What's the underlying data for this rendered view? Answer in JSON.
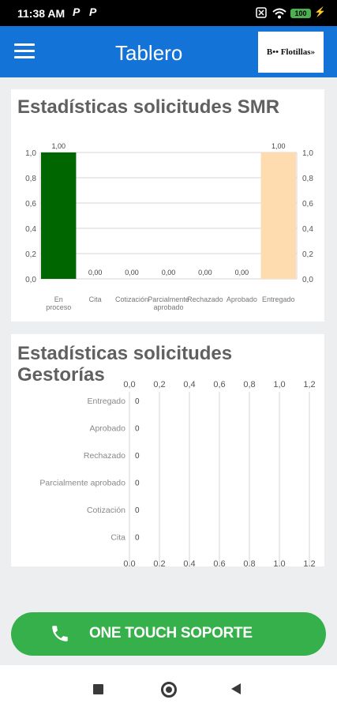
{
  "status_bar": {
    "time": "11:38 AM",
    "notif_1": "P",
    "notif_2": "P",
    "battery": "100",
    "icons": [
      "close-box-icon",
      "wifi-icon",
      "battery-icon",
      "charging-bolt-icon"
    ]
  },
  "app_bar": {
    "title": "Tablero",
    "logo_text": "B•• Flotillas»",
    "icons": [
      "menu-icon"
    ]
  },
  "colors": {
    "app_bar": "#1473d6",
    "cta": "#35b04a",
    "bar_en_proceso": "#006600",
    "bar_entregado": "#ffdcb0"
  },
  "smr_card": {
    "title": "Estadísticas solicitudes SMR",
    "y_ticks": [
      "0,0",
      "0,2",
      "0,4",
      "0,6",
      "0,8",
      "1,0"
    ]
  },
  "gestorias_card": {
    "title_line1": "Estadísticas solicitudes",
    "title_line2": "Gestorías",
    "x_ticks": [
      "0,0",
      "0,2",
      "0,4",
      "0,6",
      "0,8",
      "1,0",
      "1,2"
    ]
  },
  "chart_data": [
    {
      "type": "bar",
      "title": "Estadísticas solicitudes SMR",
      "categories": [
        "En proceso",
        "Cita",
        "Cotización",
        "Parcialmente aprobado",
        "Rechazado",
        "Aprobado",
        "Entregado"
      ],
      "category_display": [
        "En\nproceso",
        "Cita",
        "Cotización",
        "Parcialmente\naprobado",
        "Rechazado",
        "Aprobado",
        "Entregado"
      ],
      "values": [
        1,
        0,
        0,
        0,
        0,
        0,
        1
      ],
      "value_labels": [
        "1,00",
        "0,00",
        "0,00",
        "0,00",
        "0,00",
        "0,00",
        "1,00"
      ],
      "ylim": [
        0,
        1
      ],
      "y_axis_both_sides": true,
      "grid": true
    },
    {
      "type": "bar",
      "orientation": "horizontal",
      "title": "Estadísticas solicitudes Gestorías",
      "categories": [
        "Entregado",
        "Aprobado",
        "Rechazado",
        "Parcialmente aprobado",
        "Cotización",
        "Cita"
      ],
      "values": [
        0,
        0,
        0,
        0,
        0,
        0
      ],
      "value_labels": [
        "0",
        "0",
        "0",
        "0",
        "0",
        "0"
      ],
      "xlim": [
        0,
        1.2
      ],
      "grid": true
    }
  ],
  "cta": {
    "label": "ONE TOUCH SOPORTE",
    "icon": "phone-icon"
  },
  "nav_bar": {
    "icons": [
      "recents-icon",
      "home-icon",
      "back-icon"
    ]
  }
}
